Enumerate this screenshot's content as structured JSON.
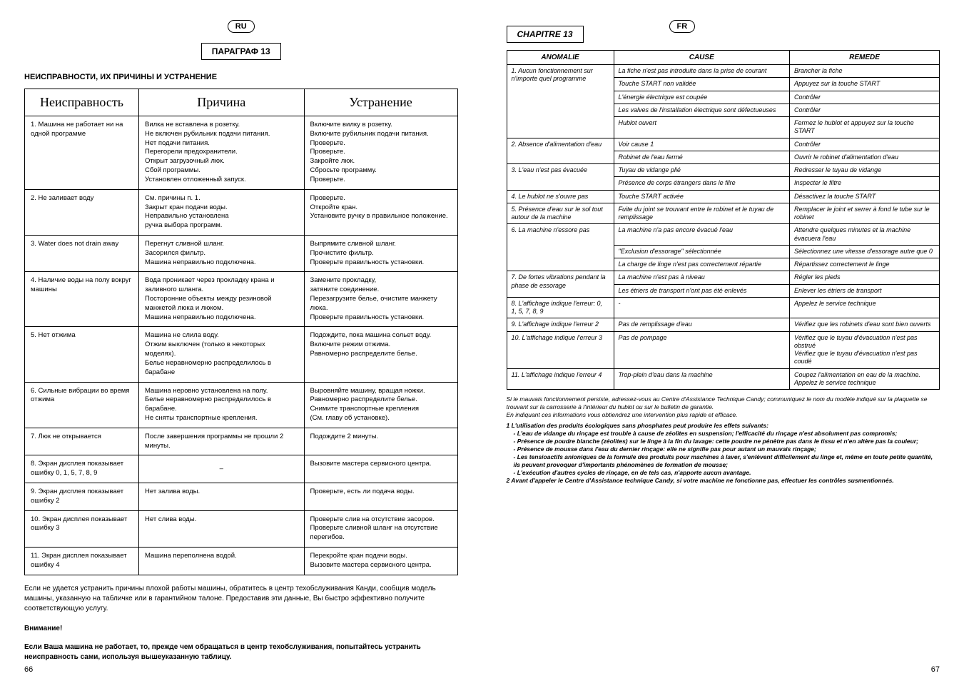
{
  "left": {
    "lang_badge": "RU",
    "chapter": "ПАРАГРАФ 13",
    "section_title": "НЕИСПРАВНОСТИ, ИХ ПРИЧИНЫ И УСТРАНЕНИЕ",
    "headers": {
      "c1": "Неисправность",
      "c2": "Причина",
      "c3": "Устранение"
    },
    "rows": [
      {
        "a": "1. Машина не работает ни на одной программе",
        "b": "Вилка не вставлена в розетку.\nНе включен рубильник подачи питания.\nНет подачи питания.\nПерегорели предохранители.\nОткрыт загрузочный люк.\nСбой программы.\nУстановлен отложенный запуск.",
        "c": "Включите вилку в розетку.\nВключите рубильник подачи питания.\nПроверьте.\nПроверьте.\nЗакройте люк.\nСбросьте программу.\nПроверьте."
      },
      {
        "a": "2.  Не заливает воду",
        "b": "См. причины п. 1.\nЗакрыт кран подачи воды.\nНеправильно установлена\nручка выбора программ.",
        "c": "Проверьте.\nОткройте кран.\nУстановите ручку в правильное положение."
      },
      {
        "a": "3.  Water does not drain away",
        "b": "Перегнут сливной шланг.\nЗасорился фильтр.\nМашина неправильно подключена.",
        "c": "Выпрямите сливной шланг.\nПрочистите фильтр.\nПроверьте правильность установки."
      },
      {
        "a": "4.  Наличие воды на полу вокруг машины",
        "b": "Вода проникает через прокладку крана и заливного шланга.\nПосторонние объекты между резиновой манжетой люка и люком.\nМашина неправильно подключена.",
        "c": "Замените прокладку,\nзатяните соединение.\nПерезагрузите белье, очистите манжету люка.\nПроверьте правильность установки."
      },
      {
        "a": "5.  Нет отжима",
        "b": "Машина не слила воду.\nОтжим выключен (только в некоторых моделях).\nБелье неравномерно распределилось в барабане",
        "c": "Подождите, пока машина сольет воду.\nВключите режим отжима.\nРавномерно распределите белье."
      },
      {
        "a": "6.  Сильные вибрации во время отжима",
        "b": "Машина неровно установлена на полу.\nБелье неравномерно распределилось в барабане.\nНе сняты транспортные крепления.",
        "c": "Выровняйте машину, вращая ножки.\nРавномерно распределите белье.\nСнимите транспортные крепления\n(См. главу об установке)."
      },
      {
        "a": "7.  Люк не открывается",
        "b": "После завершения программы не прошли 2 минуты.",
        "c": "Подождите 2 минуты."
      },
      {
        "a": "8.  Экран дисплея показывает ошибку 0, 1, 5, 7, 8, 9",
        "b": "–",
        "c": "Вызовите мастера сервисного центра.",
        "b_center": true
      },
      {
        "a": "9.  Экран дисплея показывает ошибку 2",
        "b": "Нет залива воды.",
        "c": "Проверьте, есть ли подача воды."
      },
      {
        "a": "10. Экран дисплея показывает ошибку 3",
        "b": "Нет слива воды.",
        "c": "Проверьте слив на отсутствие засоров.\nПроверьте сливной шланг на отсутствие перегибов."
      },
      {
        "a": "11. Экран дисплея показывает ошибку 4",
        "b": "Машина переполнена водой.",
        "c": "Перекройте кран  подачи воды.\nВызовите мастера сервисного центра."
      }
    ],
    "note1": "Если не удается устранить причины плохой работы машины, обратитесь в центр техобслуживания Канди, сообщив модель машины, указанную на табличке или в гарантийном талоне. Предоставив эти данные, Вы  быстро эффективно получите соответствующую услугу.",
    "note2_title": "Внимание!",
    "note2": "Если Ваша машина не работает, то, прежде чем обращаться в центр техобслуживания, попытайтесь устранить неисправность сами, используя вышеуказанную таблицу.",
    "page_num": "66"
  },
  "right": {
    "lang_badge": "FR",
    "chapter": "CHAPITRE 13",
    "headers": {
      "c1": "ANOMALIE",
      "c2": "CAUSE",
      "c3": "REMEDE"
    },
    "rows": [
      {
        "a": "1. Aucun fonctionnement sur n'importe quel programme",
        "aspan": 5,
        "pairs": [
          [
            "La fiche n'est pas introduite dans la prise de courant",
            "Brancher la fiche"
          ],
          [
            "Touche START non validée",
            "Appuyez sur la touche START"
          ],
          [
            "L'énergie électrique est coupée",
            "Contrôler"
          ],
          [
            "Les valves de l'installation électrique sont défectueuses",
            "Contrôler"
          ],
          [
            "Hublot ouvert",
            "Fermez le hublot et appuyez sur la touche START"
          ]
        ]
      },
      {
        "a": "2. Absence d'alimentation d'eau",
        "aspan": 2,
        "pairs": [
          [
            "Voir cause 1",
            "Contrôler"
          ],
          [
            "Robinet de l'eau fermé",
            "Ouvrir le robinet d'alimentation d'eau"
          ]
        ]
      },
      {
        "a": "3. L'eau n'est pas évacuée",
        "aspan": 2,
        "pairs": [
          [
            "Tuyau de vidange plié",
            "Redresser le tuyau de vidange"
          ],
          [
            "Présence de corps étrangers dans le filre",
            "Inspecter le filtre"
          ]
        ]
      },
      {
        "a": "4. Le hublot ne s'ouvre pas",
        "aspan": 1,
        "pairs": [
          [
            "Touche START activée",
            "Désactivez la touche START"
          ]
        ]
      },
      {
        "a": "5. Présence d'eau sur le sol tout autour de la machine",
        "aspan": 1,
        "pairs": [
          [
            "Fuite du joint se trouvant entre le robinet et le tuyau de remplissage",
            "Remplacer le joint et serrer à fond le tube sur le robinet"
          ]
        ]
      },
      {
        "a": "6. La machine n'essore pas",
        "aspan": 3,
        "pairs": [
          [
            "La machine n'a pas encore évacué l'eau",
            "Attendre quelques minutes et la machine évacuera l'eau"
          ],
          [
            "\"Exclusion d'essorage\" sélectionnée",
            "Sélectionnez une vitesse d'essorage autre que 0"
          ],
          [
            "La charge de linge n'est pas correctement répartie",
            "Répartissez correctement le linge"
          ]
        ]
      },
      {
        "a": "7. De fortes vibrations pendant la phase de essorage",
        "aspan": 2,
        "pairs": [
          [
            "La machine n'est pas à niveau",
            "Régler les pieds"
          ],
          [
            "Les étriers de transport n'ont pas été enlevés",
            "Enlever les étriers de transport"
          ]
        ]
      },
      {
        "a": "8. L'affichage indique l'erreur: 0, 1, 5, 7, 8, 9",
        "aspan": 1,
        "pairs": [
          [
            "-",
            "Appelez le service technique"
          ]
        ]
      },
      {
        "a": "9. L'affichage indique l'erreur 2",
        "aspan": 1,
        "pairs": [
          [
            "Pas de remplissage d'eau",
            "Vérifiez que les robinets d'eau sont bien ouverts"
          ]
        ]
      },
      {
        "a": "10. L'affichage indique l'erreur 3",
        "aspan": 1,
        "pairs": [
          [
            "Pas de pompage",
            "Vérifiez que le tuyau d'évacuation n'est pas obstrué\nVérifiez que le tuyau d'évacuation n'est pas coudé"
          ]
        ]
      },
      {
        "a": "11. L'affichage indique l'erreur 4",
        "aspan": 1,
        "pairs": [
          [
            "Trop-plein d'eau dans la machine",
            "Coupez l'alimentation en eau de la machine. Appelez le service technique"
          ]
        ]
      }
    ],
    "footnote": "Si le mauvais fonctionnement persiste, adressez-vous au Centre d'Assistance Technique Candy; communiquez le nom du modèle indiqué sur la plaquette se trouvant sur la carrosserie à l'intérieur du hublot ou sur le bulletin de garantie.\nEn indiquant ces informations vous obtiendrez une intervention plus rapide et efficace.",
    "list_title": "1 L'utilisation des produits écologiques sans phosphates peut produire les effets suivants:",
    "list": [
      "- L'eau de vidange du rinçage est trouble à cause de zéolites en suspension; l'efficacité du rinçage n'est absolument pas compromis;",
      "- Présence de poudre blanche (zéolites) sur le linge à la fin du lavage: cette poudre ne pénètre pas dans le tissu et n'en altère pas la couleur;",
      "- Présence de mousse dans l'eau du dernier rinçage: elle ne signifie pas pour autant un mauvais rinçage;",
      "- Les tensioactifs anioniques de la formule des produits pour machines à laver, s'enlèvent difficilement du linge et, même en toute petite quantité, ils peuvent provoquer d'importants phénomènes de formation de mousse;",
      "- L'exécution d'autres cycles de rinçage, en de tels cas, n'apporte aucun avantage."
    ],
    "list2": "2 Avant d'appeler le Centre d'Assistance technique Candy, si votre machine ne fonctionne pas, effectuer les contrôles susmentionnés.",
    "page_num": "67"
  }
}
